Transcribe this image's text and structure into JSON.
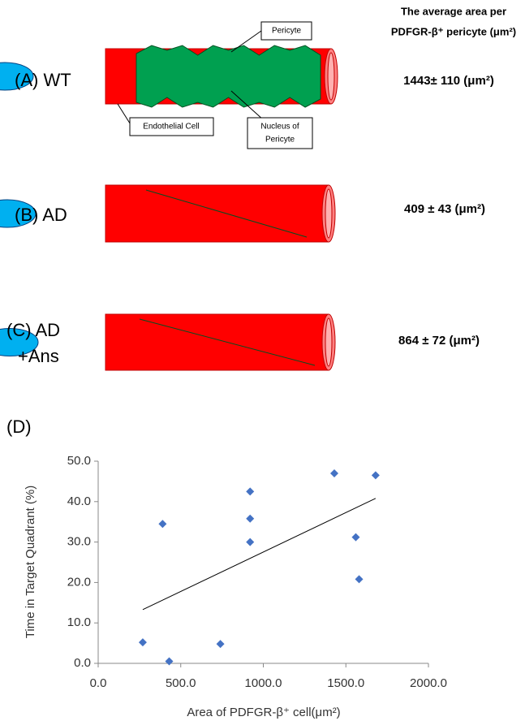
{
  "header": {
    "lines": [
      "The average area per",
      "PDFGR-β⁺ pericyte (μm²)"
    ]
  },
  "panels": [
    {
      "label": [
        "(A) WT"
      ],
      "value": "1443± 110 (μm²)"
    },
    {
      "label": [
        "(B) AD"
      ],
      "value": "409 ± 43 (μm²)"
    },
    {
      "label": [
        "(C) AD",
        "+Ans"
      ],
      "value": "864 ± 72 (μm²)"
    }
  ],
  "callouts": {
    "pericyte": "Pericyte",
    "endothelial": "Endothelial Cell",
    "nucleus": [
      "Nucleus of",
      "Pericyte"
    ]
  },
  "chart_data": {
    "type": "scatter",
    "panel_label": "(D)",
    "x_label": "Area of PDFGR-β⁺ cell(μm²)",
    "y_label": "Time in Target Quadrant (%)",
    "color": "#4472c4",
    "x": [
      270,
      390,
      430,
      740,
      920,
      920,
      920,
      1430,
      1560,
      1580,
      1680
    ],
    "values": [
      5.2,
      34.5,
      0.5,
      4.8,
      42.5,
      35.8,
      30.0,
      47.0,
      31.2,
      20.8,
      46.5
    ],
    "trendline": {
      "x": [
        270,
        1680
      ],
      "y": [
        13.3,
        40.8
      ]
    },
    "xlim": [
      0,
      2000
    ],
    "ylim": [
      0,
      50
    ],
    "xticks": [
      {
        "value": 0,
        "label": "0.0"
      },
      {
        "value": 500,
        "label": "500.0"
      },
      {
        "value": 1000,
        "label": "1000.0"
      },
      {
        "value": 1500,
        "label": "1500.0"
      },
      {
        "value": 2000,
        "label": "2000.0"
      }
    ],
    "yticks": [
      {
        "value": 0,
        "label": "0.0"
      },
      {
        "value": 10,
        "label": "10.0"
      },
      {
        "value": 20,
        "label": "20.0"
      },
      {
        "value": 30,
        "label": "30.0"
      },
      {
        "value": 40,
        "label": "40.0"
      },
      {
        "value": 50,
        "label": "50.0"
      }
    ]
  }
}
